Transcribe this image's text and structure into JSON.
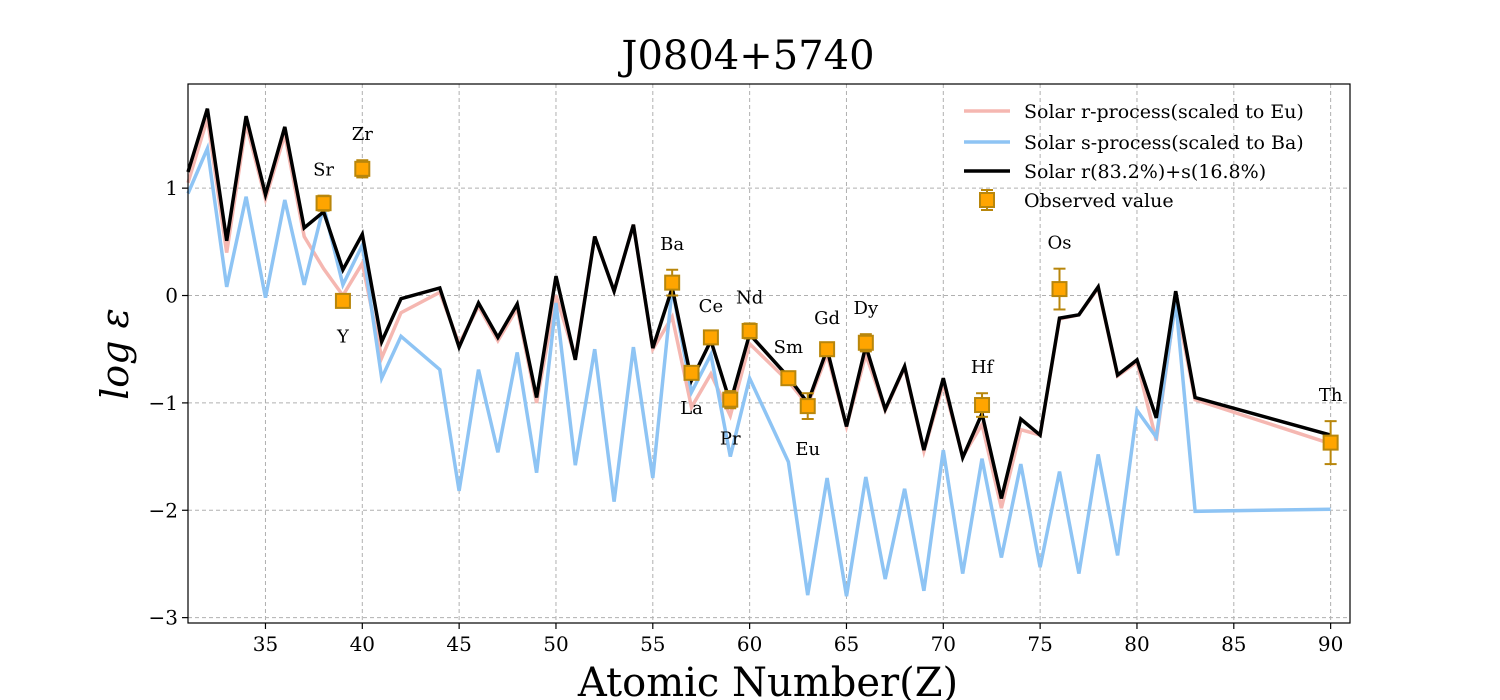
{
  "chart_data": {
    "type": "line",
    "title": "J0804+5740",
    "xlabel": "Atomic Number(Z)",
    "ylabel": "log ε",
    "xlim": [
      31,
      91
    ],
    "ylim": [
      -3.05,
      1.97
    ],
    "xticks": [
      35,
      40,
      45,
      50,
      55,
      60,
      65,
      70,
      75,
      80,
      85,
      90
    ],
    "yticks": [
      1,
      0,
      -1,
      -2,
      -3
    ],
    "ytick_labels": [
      "1",
      "0",
      "−1",
      "−2",
      "−3"
    ],
    "grid": true,
    "legend_position": "top-right",
    "series": [
      {
        "name": "Solar r-process(scaled to Eu)",
        "color": "#f5b7b1",
        "x": [
          31,
          32,
          33,
          34,
          35,
          36,
          37,
          38,
          39,
          40,
          41,
          42,
          44,
          45,
          46,
          47,
          48,
          49,
          50,
          51,
          52,
          53,
          54,
          55,
          56,
          57,
          58,
          59,
          60,
          62,
          63,
          64,
          65,
          66,
          67,
          68,
          69,
          70,
          71,
          72,
          73,
          74,
          75,
          76,
          77,
          78,
          79,
          80,
          81,
          82,
          83,
          90
        ],
        "y": [
          1.05,
          1.65,
          0.4,
          1.6,
          0.9,
          1.5,
          0.55,
          0.25,
          0.0,
          0.3,
          -0.58,
          -0.16,
          0.03,
          -0.45,
          -0.1,
          -0.42,
          -0.12,
          -1.0,
          0.0,
          -0.58,
          0.55,
          0.04,
          0.66,
          -0.5,
          -0.2,
          -1.04,
          -0.73,
          -1.12,
          -0.45,
          -0.8,
          -1.02,
          -0.55,
          -1.22,
          -0.55,
          -1.07,
          -0.67,
          -1.45,
          -0.82,
          -1.5,
          -1.2,
          -1.98,
          -1.25,
          -1.3,
          -0.22,
          -0.18,
          0.07,
          -0.75,
          -0.62,
          -1.35,
          -0.05,
          -0.97,
          -1.38
        ]
      },
      {
        "name": "Solar s-process(scaled to Ba)",
        "color": "#8ec4f4",
        "x": [
          31,
          32,
          33,
          34,
          35,
          36,
          37,
          38,
          39,
          40,
          41,
          42,
          44,
          45,
          46,
          47,
          48,
          49,
          50,
          51,
          52,
          53,
          54,
          55,
          56,
          57,
          58,
          59,
          60,
          62,
          63,
          64,
          65,
          66,
          67,
          68,
          69,
          70,
          71,
          72,
          73,
          74,
          75,
          76,
          77,
          78,
          79,
          80,
          81,
          82,
          83,
          90
        ],
        "y": [
          0.95,
          1.37,
          0.08,
          0.92,
          -0.02,
          0.89,
          0.1,
          0.83,
          0.1,
          0.47,
          -0.77,
          -0.38,
          -0.69,
          -1.82,
          -0.69,
          -1.46,
          -0.53,
          -1.65,
          -0.07,
          -1.58,
          -0.5,
          -1.92,
          -0.48,
          -1.7,
          0.07,
          -0.9,
          -0.55,
          -1.5,
          -0.77,
          -1.55,
          -2.79,
          -1.7,
          -2.8,
          -1.69,
          -2.64,
          -1.8,
          -2.75,
          -1.44,
          -2.59,
          -1.52,
          -2.44,
          -1.57,
          -2.53,
          -1.64,
          -2.59,
          -1.48,
          -2.42,
          -1.07,
          -1.32,
          -0.05,
          -2.01,
          -1.99
        ]
      },
      {
        "name": "Solar r(83.2%)+s(16.8%)",
        "color": "#000000",
        "x": [
          31,
          32,
          33,
          34,
          35,
          36,
          37,
          38,
          39,
          40,
          41,
          42,
          44,
          45,
          46,
          47,
          48,
          49,
          50,
          51,
          52,
          53,
          54,
          55,
          56,
          57,
          58,
          59,
          60,
          62,
          63,
          64,
          65,
          66,
          67,
          68,
          69,
          70,
          71,
          72,
          73,
          74,
          75,
          76,
          77,
          78,
          79,
          80,
          81,
          82,
          83,
          90
        ],
        "y": [
          1.15,
          1.74,
          0.51,
          1.67,
          0.94,
          1.57,
          0.63,
          0.78,
          0.24,
          0.57,
          -0.43,
          -0.03,
          0.07,
          -0.48,
          -0.07,
          -0.39,
          -0.08,
          -0.95,
          0.18,
          -0.6,
          0.55,
          0.04,
          0.66,
          -0.49,
          0.07,
          -0.79,
          -0.42,
          -1.0,
          -0.36,
          -0.76,
          -1.0,
          -0.5,
          -1.22,
          -0.47,
          -1.06,
          -0.66,
          -1.44,
          -0.77,
          -1.51,
          -1.1,
          -1.89,
          -1.15,
          -1.3,
          -0.21,
          -0.18,
          0.08,
          -0.74,
          -0.6,
          -1.14,
          0.04,
          -0.95,
          -1.3
        ]
      }
    ],
    "observed": {
      "name": "Observed value",
      "color": "#ffa500",
      "edge_color": "#b8860b",
      "points": [
        {
          "el": "Sr",
          "z": 38,
          "y": 0.86,
          "err": 0.07,
          "label_side": "above"
        },
        {
          "el": "Y",
          "z": 39,
          "y": -0.05,
          "err": 0.05,
          "label_side": "below"
        },
        {
          "el": "Zr",
          "z": 40,
          "y": 1.18,
          "err": 0.08,
          "label_side": "above"
        },
        {
          "el": "Ba",
          "z": 56,
          "y": 0.12,
          "err": 0.12,
          "label_side": "above"
        },
        {
          "el": "La",
          "z": 57,
          "y": -0.72,
          "err": 0.05,
          "label_side": "below"
        },
        {
          "el": "Ce",
          "z": 58,
          "y": -0.39,
          "err": 0.05,
          "label_side": "above"
        },
        {
          "el": "Pr",
          "z": 59,
          "y": -0.97,
          "err": 0.08,
          "label_side": "below"
        },
        {
          "el": "Nd",
          "z": 60,
          "y": -0.33,
          "err": 0.07,
          "label_side": "above"
        },
        {
          "el": "Sm",
          "z": 62,
          "y": -0.77,
          "err": 0.05,
          "label_side": "above"
        },
        {
          "el": "Eu",
          "z": 63,
          "y": -1.03,
          "err": 0.12,
          "label_side": "below"
        },
        {
          "el": "Gd",
          "z": 64,
          "y": -0.5,
          "err": 0.05,
          "label_side": "above"
        },
        {
          "el": "Dy",
          "z": 66,
          "y": -0.44,
          "err": 0.08,
          "label_side": "above"
        },
        {
          "el": "Hf",
          "z": 72,
          "y": -1.02,
          "err": 0.11,
          "label_side": "above"
        },
        {
          "el": "Os",
          "z": 76,
          "y": 0.06,
          "err": 0.19,
          "label_side": "above"
        },
        {
          "el": "Th",
          "z": 90,
          "y": -1.37,
          "err": 0.2,
          "label_side": "above"
        }
      ]
    }
  }
}
